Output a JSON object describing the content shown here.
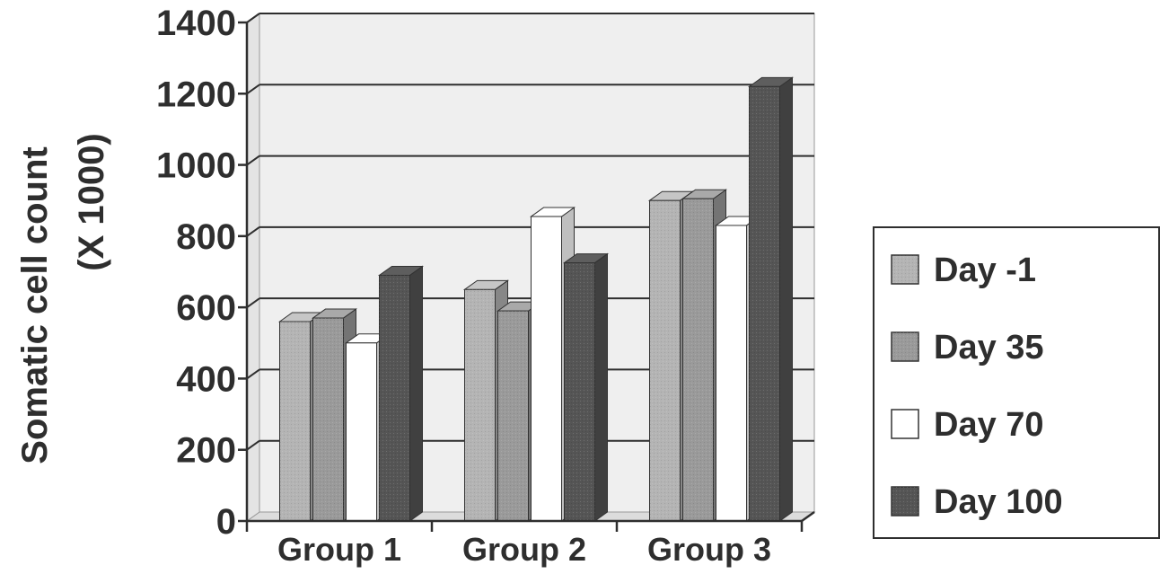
{
  "chart_data": {
    "type": "bar",
    "ylabel_line1": "Somatic cell count",
    "ylabel_line2": "(X 1000)",
    "ylim": [
      0,
      1400
    ],
    "yticks": [
      "0",
      "200",
      "400",
      "600",
      "800",
      "1000",
      "1200",
      "1400"
    ],
    "categories": [
      "Group 1",
      "Group 2",
      "Group 3"
    ],
    "series": [
      {
        "name": "Day -1",
        "values": [
          560,
          650,
          900
        ],
        "color": "#b4b4b4"
      },
      {
        "name": "Day 35",
        "values": [
          570,
          590,
          905
        ],
        "color": "#9a9a9a"
      },
      {
        "name": "Day 70",
        "values": [
          500,
          855,
          830
        ],
        "color": "#ffffff"
      },
      {
        "name": "Day 100",
        "values": [
          690,
          725,
          1220
        ],
        "color": "#555555"
      }
    ],
    "grid": true,
    "legend_position": "right"
  }
}
